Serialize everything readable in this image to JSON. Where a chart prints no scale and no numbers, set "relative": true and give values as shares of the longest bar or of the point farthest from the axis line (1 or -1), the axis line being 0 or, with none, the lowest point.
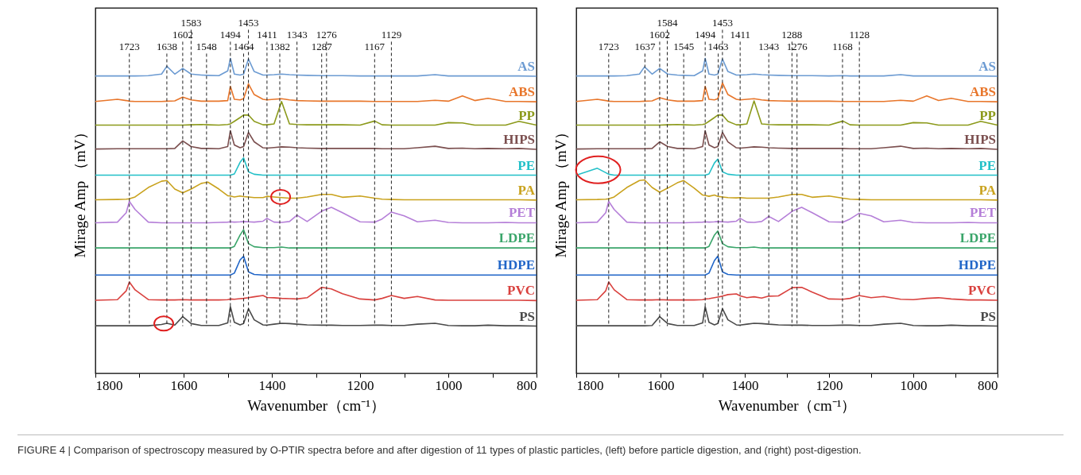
{
  "chart_data": [
    {
      "type": "line",
      "relative": true,
      "xlabel": "Wavenumber（cm⁻¹）",
      "ylabel": "Mirage Amp （mV）",
      "xlim": [
        1800,
        800
      ],
      "xticks": [
        1800,
        {
          "value": 1700,
          "label": null
        },
        1600,
        {
          "value": 1500,
          "label": null
        },
        1400,
        {
          "value": 1300,
          "label": null
        },
        1200,
        {
          "value": 1100,
          "label": null
        },
        1000,
        {
          "value": 900,
          "label": null
        },
        800
      ],
      "x": [
        1800,
        1750,
        1730,
        1723,
        1710,
        1680,
        1650,
        1638,
        1620,
        1602,
        1583,
        1560,
        1545,
        1520,
        1500,
        1494,
        1485,
        1472,
        1464,
        1453,
        1440,
        1420,
        1411,
        1395,
        1378,
        1360,
        1343,
        1320,
        1287,
        1265,
        1240,
        1200,
        1167,
        1150,
        1129,
        1100,
        1070,
        1030,
        1000,
        968,
        940,
        910,
        870,
        840,
        800
      ],
      "series": [
        {
          "name": "AS",
          "color": "#6c9bd2",
          "values": [
            0.944,
            0.944,
            0.944,
            0.944,
            0.944,
            0.945,
            0.95,
            0.975,
            0.95,
            0.968,
            0.95,
            0.947,
            0.946,
            0.945,
            0.96,
            1.0,
            0.95,
            0.947,
            0.95,
            0.998,
            0.958,
            0.947,
            0.947,
            0.948,
            0.95,
            0.948,
            0.947,
            0.946,
            0.945,
            0.945,
            0.945,
            0.944,
            0.944,
            0.944,
            0.944,
            0.944,
            0.944,
            0.948,
            0.944,
            0.944,
            0.944,
            0.944,
            0.944,
            0.944,
            0.943
          ]
        },
        {
          "name": "ABS",
          "color": "#e8762b",
          "values": [
            0.863,
            0.87,
            0.866,
            0.864,
            0.863,
            0.863,
            0.863,
            0.864,
            0.865,
            0.877,
            0.868,
            0.864,
            0.864,
            0.864,
            0.866,
            0.911,
            0.87,
            0.868,
            0.872,
            0.919,
            0.885,
            0.87,
            0.868,
            0.87,
            0.872,
            0.868,
            0.866,
            0.865,
            0.864,
            0.864,
            0.864,
            0.864,
            0.863,
            0.863,
            0.863,
            0.863,
            0.863,
            0.867,
            0.864,
            0.881,
            0.866,
            0.873,
            0.863,
            0.863,
            0.862
          ]
        },
        {
          "name": "PP",
          "color": "#8c9a1b",
          "values": [
            0.788,
            0.788,
            0.788,
            0.788,
            0.788,
            0.788,
            0.788,
            0.788,
            0.788,
            0.788,
            0.789,
            0.79,
            0.789,
            0.788,
            0.79,
            0.792,
            0.8,
            0.812,
            0.82,
            0.82,
            0.8,
            0.789,
            0.789,
            0.792,
            0.863,
            0.792,
            0.79,
            0.789,
            0.789,
            0.789,
            0.789,
            0.788,
            0.801,
            0.789,
            0.788,
            0.788,
            0.788,
            0.788,
            0.796,
            0.795,
            0.788,
            0.788,
            0.788,
            0.8,
            0.788
          ]
        },
        {
          "name": "HIPS",
          "color": "#7b4f4f",
          "values": [
            0.712,
            0.713,
            0.713,
            0.713,
            0.713,
            0.713,
            0.713,
            0.713,
            0.714,
            0.738,
            0.72,
            0.714,
            0.714,
            0.713,
            0.72,
            0.77,
            0.725,
            0.716,
            0.72,
            0.765,
            0.735,
            0.716,
            0.715,
            0.717,
            0.719,
            0.718,
            0.716,
            0.715,
            0.714,
            0.714,
            0.714,
            0.714,
            0.714,
            0.713,
            0.713,
            0.713,
            0.716,
            0.721,
            0.714,
            0.715,
            0.713,
            0.714,
            0.713,
            0.714,
            0.711
          ]
        },
        {
          "name": "PE",
          "color": "#22c0c8",
          "values": [
            0.629,
            0.629,
            0.629,
            0.629,
            0.629,
            0.629,
            0.629,
            0.629,
            0.629,
            0.629,
            0.629,
            0.629,
            0.629,
            0.629,
            0.629,
            0.629,
            0.633,
            0.67,
            0.684,
            0.64,
            0.632,
            0.629,
            0.629,
            0.629,
            0.629,
            0.629,
            0.629,
            0.629,
            0.629,
            0.629,
            0.629,
            0.629,
            0.629,
            0.629,
            0.629,
            0.629,
            0.629,
            0.629,
            0.629,
            0.629,
            0.629,
            0.629,
            0.629,
            0.629,
            0.629
          ]
        },
        {
          "name": "PA",
          "color": "#c9a21d",
          "values": [
            0.551,
            0.552,
            0.553,
            0.554,
            0.56,
            0.59,
            0.61,
            0.612,
            0.585,
            0.573,
            0.585,
            0.603,
            0.607,
            0.585,
            0.564,
            0.563,
            0.56,
            0.563,
            0.561,
            0.56,
            0.558,
            0.558,
            0.562,
            0.56,
            0.558,
            0.556,
            0.556,
            0.56,
            0.568,
            0.568,
            0.559,
            0.563,
            0.556,
            0.553,
            0.552,
            0.551,
            0.551,
            0.551,
            0.551,
            0.551,
            0.551,
            0.551,
            0.551,
            0.551,
            0.55
          ]
        },
        {
          "name": "PET",
          "color": "#b57fd8",
          "values": [
            0.478,
            0.48,
            0.51,
            0.546,
            0.52,
            0.48,
            0.478,
            0.478,
            0.478,
            0.478,
            0.478,
            0.478,
            0.478,
            0.479,
            0.48,
            0.481,
            0.48,
            0.481,
            0.482,
            0.481,
            0.48,
            0.483,
            0.492,
            0.48,
            0.479,
            0.482,
            0.502,
            0.482,
            0.515,
            0.527,
            0.51,
            0.481,
            0.48,
            0.49,
            0.512,
            0.5,
            0.481,
            0.486,
            0.479,
            0.478,
            0.478,
            0.478,
            0.479,
            0.478,
            0.478
          ]
        },
        {
          "name": "LDPE",
          "color": "#3aa56a",
          "values": [
            0.398,
            0.398,
            0.398,
            0.398,
            0.398,
            0.398,
            0.398,
            0.398,
            0.398,
            0.398,
            0.398,
            0.398,
            0.398,
            0.398,
            0.398,
            0.398,
            0.403,
            0.439,
            0.456,
            0.412,
            0.402,
            0.399,
            0.399,
            0.399,
            0.401,
            0.398,
            0.398,
            0.398,
            0.398,
            0.398,
            0.398,
            0.398,
            0.398,
            0.398,
            0.398,
            0.398,
            0.398,
            0.398,
            0.398,
            0.398,
            0.398,
            0.398,
            0.398,
            0.398,
            0.398
          ]
        },
        {
          "name": "HDPE",
          "color": "#2166c8",
          "values": [
            0.312,
            0.312,
            0.312,
            0.312,
            0.312,
            0.312,
            0.312,
            0.312,
            0.312,
            0.312,
            0.312,
            0.312,
            0.312,
            0.312,
            0.312,
            0.312,
            0.318,
            0.36,
            0.372,
            0.322,
            0.314,
            0.312,
            0.312,
            0.312,
            0.312,
            0.312,
            0.312,
            0.312,
            0.312,
            0.312,
            0.312,
            0.312,
            0.312,
            0.312,
            0.312,
            0.312,
            0.312,
            0.312,
            0.312,
            0.312,
            0.312,
            0.312,
            0.312,
            0.312,
            0.312
          ]
        },
        {
          "name": "PVC",
          "color": "#d9413e",
          "values": [
            0.232,
            0.234,
            0.262,
            0.29,
            0.265,
            0.234,
            0.233,
            0.233,
            0.233,
            0.234,
            0.233,
            0.233,
            0.233,
            0.233,
            0.234,
            0.236,
            0.235,
            0.237,
            0.238,
            0.24,
            0.243,
            0.247,
            0.241,
            0.24,
            0.238,
            0.237,
            0.236,
            0.24,
            0.273,
            0.268,
            0.253,
            0.236,
            0.233,
            0.238,
            0.247,
            0.238,
            0.244,
            0.233,
            0.232,
            0.232,
            0.232,
            0.232,
            0.232,
            0.232,
            0.231
          ]
        },
        {
          "name": "PS",
          "color": "#4a4a4a",
          "values": [
            0.151,
            0.151,
            0.151,
            0.151,
            0.151,
            0.151,
            0.155,
            0.159,
            0.153,
            0.18,
            0.158,
            0.152,
            0.152,
            0.152,
            0.16,
            0.212,
            0.162,
            0.154,
            0.158,
            0.205,
            0.17,
            0.154,
            0.153,
            0.156,
            0.159,
            0.158,
            0.156,
            0.154,
            0.153,
            0.153,
            0.152,
            0.152,
            0.153,
            0.153,
            0.152,
            0.152,
            0.156,
            0.159,
            0.152,
            0.151,
            0.151,
            0.153,
            0.151,
            0.151,
            0.15
          ]
        }
      ],
      "ref_lines": [
        {
          "axis": "x",
          "value": 1638,
          "label": "1638",
          "line_style": "dashed"
        },
        {
          "axis": "x",
          "value": 1602,
          "label": "1602",
          "line_style": "dashed"
        },
        {
          "axis": "x",
          "value": 1494,
          "label": "1494",
          "line_style": "dashed"
        },
        {
          "axis": "x",
          "value": 1453,
          "label": "1453",
          "line_style": "dashed"
        },
        {
          "axis": "x",
          "value": 1167,
          "label": "1167",
          "line_style": "dashed"
        },
        {
          "axis": "x",
          "value": 1583,
          "label": "1583",
          "line_style": "dashed"
        },
        {
          "axis": "x",
          "value": 1276,
          "label": "1276",
          "line_style": "dashed"
        },
        {
          "axis": "x",
          "value": 1464,
          "label": "1464",
          "line_style": "dashed"
        },
        {
          "axis": "x",
          "value": 1548,
          "label": "1548",
          "line_style": "dashed"
        },
        {
          "axis": "x",
          "value": 1343,
          "label": "1343",
          "line_style": "dashed"
        },
        {
          "axis": "x",
          "value": 1129,
          "label": "1129",
          "line_style": "dashed"
        },
        {
          "axis": "x",
          "value": 1723,
          "label": "1723",
          "line_style": "dashed"
        },
        {
          "axis": "x",
          "value": 1411,
          "label": "1411",
          "line_style": "dashed"
        },
        {
          "axis": "x",
          "value": 1287,
          "label": "1287",
          "line_style": "dashed"
        },
        {
          "axis": "x",
          "value": 1382,
          "label": "1382",
          "line_style": "dashed"
        }
      ],
      "annotations": [
        "FIGURE 4 | Comparison of spectroscopy measured by O-PTIR spectra before and after digestion of 11 types of plastic particles, (left) before particle digestion, and (right) post-digestion."
      ]
    },
    {
      "type": "line",
      "relative": true,
      "xlabel": "Wavenumber（cm⁻¹）",
      "ylabel": "Mirage Amp （mV）",
      "xlim": [
        1800,
        800
      ],
      "xticks": [
        1800,
        {
          "value": 1700,
          "label": null
        },
        1600,
        {
          "value": 1500,
          "label": null
        },
        1400,
        {
          "value": 1300,
          "label": null
        },
        1200,
        {
          "value": 1100,
          "label": null
        },
        1000,
        {
          "value": 900,
          "label": null
        },
        800
      ],
      "x": [
        1800,
        1750,
        1730,
        1723,
        1710,
        1680,
        1650,
        1638,
        1620,
        1602,
        1583,
        1560,
        1545,
        1520,
        1500,
        1494,
        1485,
        1472,
        1464,
        1453,
        1440,
        1420,
        1411,
        1395,
        1378,
        1360,
        1343,
        1320,
        1287,
        1265,
        1240,
        1200,
        1167,
        1150,
        1129,
        1100,
        1070,
        1030,
        1000,
        968,
        940,
        910,
        870,
        840,
        800
      ],
      "series": [
        {
          "name": "AS",
          "color": "#6c9bd2",
          "values": [
            0.944,
            0.944,
            0.944,
            0.944,
            0.944,
            0.945,
            0.95,
            0.973,
            0.95,
            0.968,
            0.95,
            0.947,
            0.946,
            0.945,
            0.96,
            1.0,
            0.95,
            0.947,
            0.95,
            0.998,
            0.958,
            0.947,
            0.947,
            0.948,
            0.95,
            0.948,
            0.947,
            0.946,
            0.945,
            0.945,
            0.945,
            0.944,
            0.945,
            0.944,
            0.944,
            0.944,
            0.944,
            0.948,
            0.944,
            0.944,
            0.944,
            0.944,
            0.944,
            0.944,
            0.943
          ]
        },
        {
          "name": "ABS",
          "color": "#e8762b",
          "values": [
            0.863,
            0.87,
            0.866,
            0.864,
            0.863,
            0.863,
            0.863,
            0.864,
            0.865,
            0.875,
            0.868,
            0.864,
            0.864,
            0.864,
            0.866,
            0.911,
            0.87,
            0.868,
            0.872,
            0.922,
            0.885,
            0.87,
            0.868,
            0.87,
            0.872,
            0.868,
            0.866,
            0.865,
            0.864,
            0.864,
            0.864,
            0.864,
            0.863,
            0.863,
            0.863,
            0.863,
            0.863,
            0.867,
            0.864,
            0.881,
            0.866,
            0.873,
            0.863,
            0.863,
            0.862
          ]
        },
        {
          "name": "PP",
          "color": "#8c9a1b",
          "values": [
            0.788,
            0.788,
            0.788,
            0.788,
            0.788,
            0.788,
            0.788,
            0.788,
            0.788,
            0.788,
            0.789,
            0.79,
            0.789,
            0.788,
            0.79,
            0.792,
            0.8,
            0.812,
            0.82,
            0.82,
            0.8,
            0.789,
            0.789,
            0.792,
            0.865,
            0.792,
            0.79,
            0.789,
            0.789,
            0.789,
            0.789,
            0.788,
            0.801,
            0.789,
            0.788,
            0.788,
            0.788,
            0.788,
            0.796,
            0.795,
            0.788,
            0.788,
            0.788,
            0.8,
            0.788
          ]
        },
        {
          "name": "HIPS",
          "color": "#7b4f4f",
          "values": [
            0.712,
            0.713,
            0.713,
            0.713,
            0.713,
            0.713,
            0.713,
            0.713,
            0.714,
            0.735,
            0.72,
            0.714,
            0.714,
            0.713,
            0.72,
            0.77,
            0.725,
            0.716,
            0.72,
            0.765,
            0.735,
            0.716,
            0.715,
            0.717,
            0.719,
            0.718,
            0.716,
            0.715,
            0.714,
            0.714,
            0.714,
            0.714,
            0.714,
            0.713,
            0.713,
            0.713,
            0.716,
            0.721,
            0.714,
            0.715,
            0.713,
            0.714,
            0.713,
            0.714,
            0.711
          ]
        },
        {
          "name": "PE",
          "color": "#22c0c8",
          "values": [
            0.629,
            0.651,
            0.637,
            0.632,
            0.629,
            0.629,
            0.629,
            0.629,
            0.629,
            0.629,
            0.629,
            0.629,
            0.629,
            0.629,
            0.629,
            0.629,
            0.633,
            0.668,
            0.68,
            0.64,
            0.632,
            0.629,
            0.629,
            0.629,
            0.629,
            0.629,
            0.629,
            0.629,
            0.629,
            0.629,
            0.629,
            0.629,
            0.629,
            0.629,
            0.629,
            0.629,
            0.629,
            0.629,
            0.629,
            0.629,
            0.629,
            0.629,
            0.629,
            0.629,
            0.629
          ]
        },
        {
          "name": "PA",
          "color": "#c9a21d",
          "values": [
            0.551,
            0.552,
            0.553,
            0.554,
            0.56,
            0.59,
            0.612,
            0.614,
            0.59,
            0.575,
            0.588,
            0.605,
            0.612,
            0.588,
            0.566,
            0.565,
            0.562,
            0.566,
            0.562,
            0.56,
            0.558,
            0.557,
            0.558,
            0.556,
            0.556,
            0.556,
            0.556,
            0.56,
            0.568,
            0.568,
            0.559,
            0.563,
            0.556,
            0.553,
            0.552,
            0.551,
            0.551,
            0.551,
            0.551,
            0.551,
            0.551,
            0.551,
            0.551,
            0.551,
            0.55
          ]
        },
        {
          "name": "PET",
          "color": "#b57fd8",
          "values": [
            0.478,
            0.48,
            0.51,
            0.546,
            0.52,
            0.48,
            0.478,
            0.478,
            0.478,
            0.478,
            0.478,
            0.478,
            0.478,
            0.479,
            0.48,
            0.481,
            0.48,
            0.481,
            0.482,
            0.481,
            0.48,
            0.483,
            0.492,
            0.48,
            0.479,
            0.482,
            0.498,
            0.482,
            0.515,
            0.527,
            0.51,
            0.481,
            0.48,
            0.49,
            0.508,
            0.5,
            0.481,
            0.486,
            0.479,
            0.478,
            0.478,
            0.478,
            0.479,
            0.478,
            0.478
          ]
        },
        {
          "name": "LDPE",
          "color": "#3aa56a",
          "values": [
            0.398,
            0.398,
            0.398,
            0.398,
            0.398,
            0.398,
            0.398,
            0.398,
            0.398,
            0.398,
            0.398,
            0.398,
            0.398,
            0.398,
            0.398,
            0.398,
            0.403,
            0.439,
            0.452,
            0.412,
            0.402,
            0.399,
            0.399,
            0.399,
            0.401,
            0.398,
            0.398,
            0.398,
            0.398,
            0.398,
            0.398,
            0.398,
            0.398,
            0.398,
            0.398,
            0.398,
            0.398,
            0.398,
            0.398,
            0.398,
            0.398,
            0.398,
            0.398,
            0.398,
            0.398
          ]
        },
        {
          "name": "HDPE",
          "color": "#2166c8",
          "values": [
            0.312,
            0.312,
            0.312,
            0.312,
            0.312,
            0.312,
            0.312,
            0.312,
            0.312,
            0.312,
            0.312,
            0.312,
            0.312,
            0.312,
            0.312,
            0.312,
            0.318,
            0.358,
            0.372,
            0.322,
            0.314,
            0.312,
            0.312,
            0.312,
            0.312,
            0.312,
            0.312,
            0.312,
            0.312,
            0.312,
            0.312,
            0.312,
            0.312,
            0.312,
            0.312,
            0.312,
            0.312,
            0.312,
            0.312,
            0.312,
            0.312,
            0.312,
            0.312,
            0.312,
            0.312
          ]
        },
        {
          "name": "PVC",
          "color": "#d9413e",
          "values": [
            0.232,
            0.234,
            0.262,
            0.29,
            0.265,
            0.234,
            0.233,
            0.233,
            0.233,
            0.234,
            0.233,
            0.233,
            0.233,
            0.233,
            0.234,
            0.236,
            0.237,
            0.24,
            0.242,
            0.245,
            0.25,
            0.252,
            0.246,
            0.24,
            0.243,
            0.239,
            0.245,
            0.246,
            0.272,
            0.273,
            0.258,
            0.236,
            0.235,
            0.238,
            0.247,
            0.24,
            0.244,
            0.235,
            0.234,
            0.238,
            0.24,
            0.236,
            0.233,
            0.233,
            0.232
          ]
        },
        {
          "name": "PS",
          "color": "#4a4a4a",
          "values": [
            0.151,
            0.151,
            0.151,
            0.151,
            0.151,
            0.151,
            0.151,
            0.151,
            0.152,
            0.18,
            0.158,
            0.152,
            0.152,
            0.152,
            0.16,
            0.212,
            0.162,
            0.154,
            0.158,
            0.205,
            0.17,
            0.154,
            0.153,
            0.156,
            0.159,
            0.158,
            0.156,
            0.154,
            0.153,
            0.153,
            0.152,
            0.152,
            0.153,
            0.153,
            0.152,
            0.152,
            0.156,
            0.159,
            0.152,
            0.151,
            0.151,
            0.153,
            0.151,
            0.151,
            0.15
          ]
        }
      ],
      "ref_lines": [
        {
          "axis": "x",
          "value": 1637,
          "label": "1637",
          "line_style": "dashed"
        },
        {
          "axis": "x",
          "value": 1602,
          "label": "1602",
          "line_style": "dashed"
        },
        {
          "axis": "x",
          "value": 1494,
          "label": "1494",
          "line_style": "dashed"
        },
        {
          "axis": "x",
          "value": 1453,
          "label": "1453",
          "line_style": "dashed"
        },
        {
          "axis": "x",
          "value": 1168,
          "label": "1168",
          "line_style": "dashed"
        },
        {
          "axis": "x",
          "value": 1584,
          "label": "1584",
          "line_style": "dashed"
        },
        {
          "axis": "x",
          "value": 1463,
          "label": "1463",
          "line_style": "dashed"
        },
        {
          "axis": "x",
          "value": 1276,
          "label": "1276",
          "line_style": "dashed"
        },
        {
          "axis": "x",
          "value": 1545,
          "label": "1545",
          "line_style": "dashed"
        },
        {
          "axis": "x",
          "value": 1343,
          "label": "1343",
          "line_style": "dashed"
        },
        {
          "axis": "x",
          "value": 1128,
          "label": "1128",
          "line_style": "dashed"
        },
        {
          "axis": "x",
          "value": 1411,
          "label": "1411",
          "line_style": "dashed"
        },
        {
          "axis": "x",
          "value": 1723,
          "label": "1723",
          "line_style": "dashed"
        },
        {
          "axis": "x",
          "value": 1288,
          "label": "1288",
          "line_style": "dashed"
        }
      ]
    }
  ]
}
